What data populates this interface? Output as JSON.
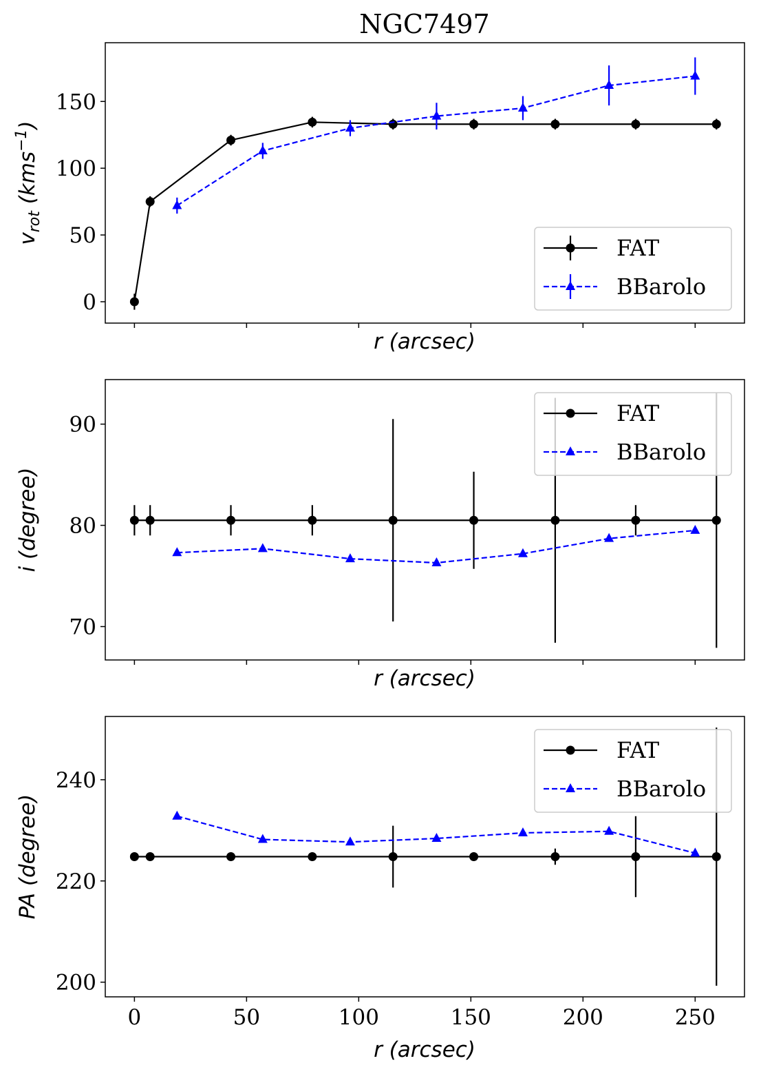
{
  "chart_data": {
    "title": "NGC7497",
    "type": "line",
    "colors": {
      "FAT": "#000000",
      "BBarolo": "#0000ff"
    },
    "xlabel": "r (arcsec)",
    "xlabel_parts": {
      "var": "r",
      "unit": " (arcsec)"
    },
    "xlim": [
      -13,
      272
    ],
    "xticks": [
      0,
      50,
      100,
      150,
      200,
      250
    ],
    "x_fat": [
      0,
      7,
      43,
      79.3,
      115.3,
      151.3,
      187.6,
      223.5,
      259.5
    ],
    "x_bbarolo": [
      19,
      57.2,
      96.2,
      134.7,
      173.2,
      211.6,
      250
    ],
    "panels": [
      {
        "ylabel": "v_rot (kms^-1)",
        "ylabel_parts": {
          "v": "v",
          "sub": "rot",
          "mid": " (kms",
          "sup": "−1",
          "end": ")"
        },
        "ylim": [
          -16,
          194
        ],
        "yticks": [
          0,
          50,
          100,
          150
        ],
        "legend": "lower-right",
        "series": [
          {
            "name": "FAT",
            "style": "solid",
            "marker": "circle",
            "values": [
              0,
              75,
              121,
              134.5,
              133,
              133,
              133,
              133,
              133
            ],
            "errors": [
              6,
              4,
              4,
              4,
              4,
              4,
              4,
              4,
              4
            ]
          },
          {
            "name": "BBarolo",
            "style": "dashed",
            "marker": "triangle",
            "values": [
              72,
              113,
              130,
              139,
              145,
              162,
              169
            ],
            "errors": [
              6,
              6,
              6,
              10,
              9,
              15,
              14
            ]
          }
        ]
      },
      {
        "ylabel": "i (degree)",
        "ylabel_parts": {
          "v": "i",
          "mid": " (degree)"
        },
        "ylim": [
          66.7,
          94.4
        ],
        "yticks": [
          70,
          80,
          90
        ],
        "legend": "upper-right",
        "series": [
          {
            "name": "FAT",
            "style": "solid",
            "marker": "circle",
            "values": [
              80.5,
              80.5,
              80.5,
              80.5,
              80.5,
              80.5,
              80.5,
              80.5,
              80.5
            ],
            "errors": [
              1.5,
              1.5,
              1.5,
              1.5,
              10,
              4.8,
              12.1,
              1.5,
              12.6
            ]
          },
          {
            "name": "BBarolo",
            "style": "dashed",
            "marker": "triangle",
            "values": [
              77.3,
              77.7,
              76.7,
              76.3,
              77.2,
              78.7,
              79.5
            ],
            "errors": [
              0,
              0,
              0,
              0,
              0,
              0,
              0
            ]
          }
        ]
      },
      {
        "ylabel": "PA (degree)",
        "ylabel_parts": {
          "v": "PA",
          "mid": " (degree)"
        },
        "ylim": [
          197.1,
          252.5
        ],
        "yticks": [
          200,
          220,
          240
        ],
        "legend": "upper-right",
        "series": [
          {
            "name": "FAT",
            "style": "solid",
            "marker": "circle",
            "values": [
              224.8,
              224.8,
              224.8,
              224.8,
              224.8,
              224.8,
              224.8,
              224.8,
              224.8
            ],
            "errors": [
              0.5,
              0.5,
              0.5,
              0.5,
              6.1,
              0.6,
              1.6,
              8,
              25.5
            ]
          },
          {
            "name": "BBarolo",
            "style": "dashed",
            "marker": "triangle",
            "values": [
              232.8,
              228.2,
              227.7,
              228.4,
              229.5,
              229.8,
              225.5
            ],
            "errors": [
              0,
              0,
              0,
              0,
              0,
              0,
              0
            ]
          }
        ]
      }
    ]
  }
}
